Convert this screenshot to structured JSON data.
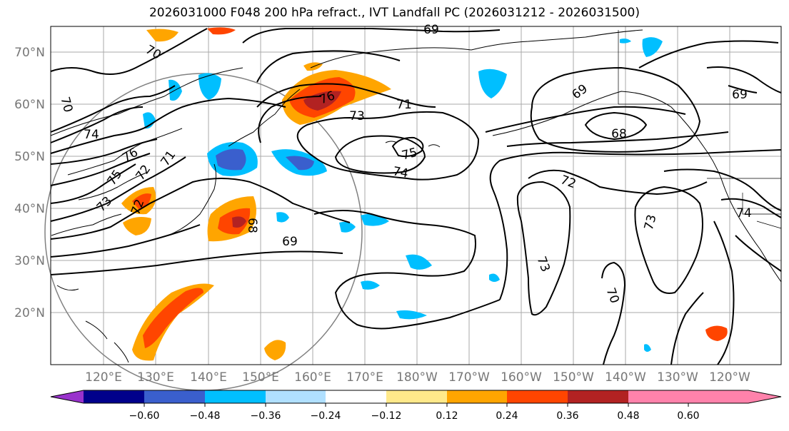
{
  "title": "2026031000 F048 200 hPa refract., IVT Landfall PC (2026031212 - 2026031500)",
  "map": {
    "lat_labels": [
      "70°N",
      "60°N",
      "50°N",
      "40°N",
      "30°N",
      "20°N"
    ],
    "lon_labels": [
      "120°E",
      "130°E",
      "140°E",
      "150°E",
      "160°E",
      "170°E",
      "180°W",
      "170°W",
      "160°W",
      "150°W",
      "140°W",
      "130°W",
      "120°W"
    ],
    "contour_labels": [
      "69",
      "70",
      "70",
      "74",
      "76",
      "75",
      "73",
      "72",
      "71",
      "72",
      "76",
      "73",
      "71",
      "75",
      "74",
      "68",
      "69",
      "69",
      "72",
      "74",
      "73",
      "69",
      "73",
      "70",
      "68"
    ]
  },
  "colorbar": {
    "ticks": [
      "−0.60",
      "−0.48",
      "−0.36",
      "−0.24",
      "−0.12",
      "0.12",
      "0.24",
      "0.36",
      "0.48",
      "0.60"
    ],
    "colors": [
      "#9932cc",
      "#00008b",
      "#3a5fcd",
      "#00bfff",
      "#b0e0ff",
      "#ffffff",
      "#ffe98a",
      "#ffa500",
      "#ff4500",
      "#b22222",
      "#ff82ab"
    ]
  }
}
